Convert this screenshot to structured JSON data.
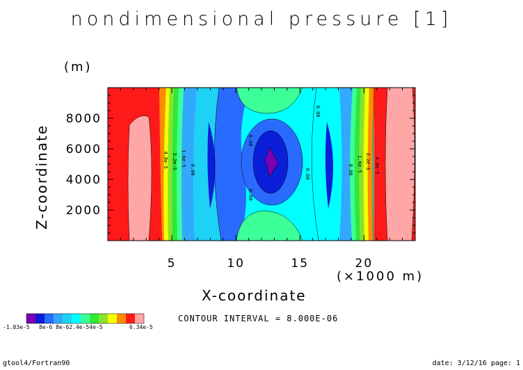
{
  "chart_data": {
    "type": "contour",
    "title": "nondimensional pressure [1]",
    "xlabel": "X-coordinate",
    "x_unit": "(×1000 m)",
    "ylabel": "Z-coordinate",
    "y_unit": "(m)",
    "xlim": [
      0,
      24
    ],
    "ylim": [
      0,
      10000
    ],
    "x_ticks": [
      5,
      10,
      15,
      20
    ],
    "y_ticks": [
      2000,
      4000,
      6000,
      8000
    ],
    "contour_interval": "CONTOUR INTERVAL = 8.000E-06",
    "contour_labels": [
      "4.8e-5",
      "3.2e-5",
      "1.6e-5",
      "0.00",
      "0.00",
      "0.00",
      "0.00",
      "0.00",
      "0.00",
      "1.6e-5",
      "3.2e-5",
      "4.8e-5"
    ],
    "colorbar": {
      "min_label": "-1.83e-5",
      "mid_label": "8e-6 8e-62.4e-54e-5",
      "max_label": "6.34e-5",
      "colors": [
        "#7a00b4",
        "#0b1ed8",
        "#2a6bff",
        "#33a8ff",
        "#1ed2f5",
        "#00ffff",
        "#3dff98",
        "#30e838",
        "#8ae22a",
        "#f4ff00",
        "#ff8c00",
        "#ff1a1a",
        "#ffa6a6"
      ]
    },
    "grid": false,
    "legend_position": "bottom-left"
  },
  "footer": {
    "left": "gtool4/Fortran90",
    "right": "date: 3/12/16 page: 1"
  }
}
